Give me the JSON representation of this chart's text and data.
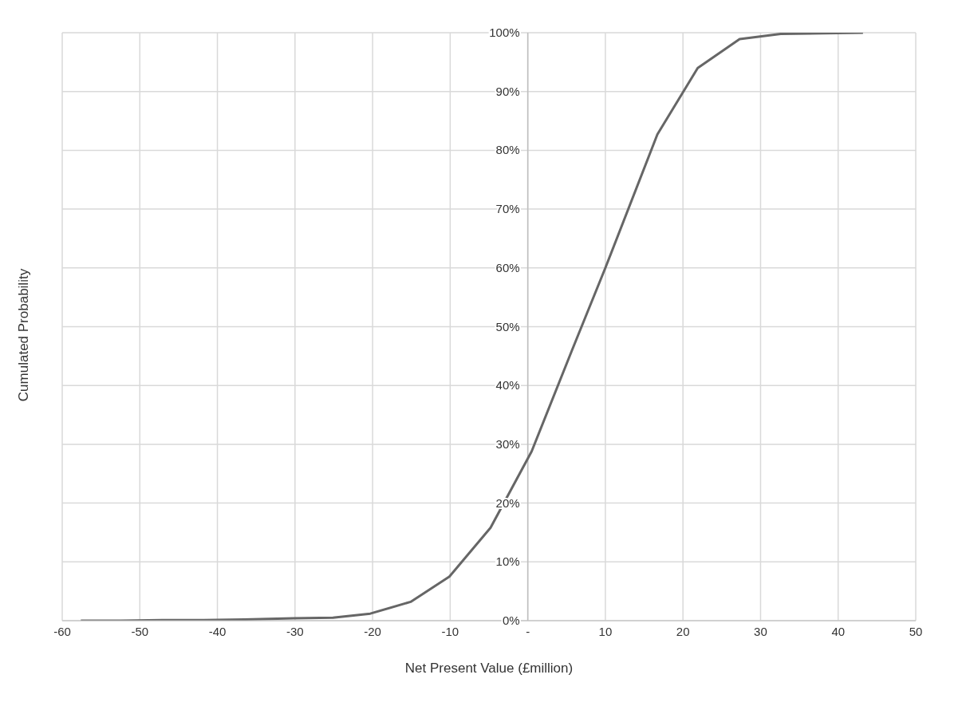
{
  "chart_data": {
    "type": "line",
    "xlabel": "Net Present Value (£million)",
    "ylabel": "Cumulated Probability",
    "x": [
      -57.6,
      -52.4,
      -47.1,
      -41.8,
      -36.5,
      -30.2,
      -25.1,
      -20.3,
      -15.1,
      -10.1,
      -4.8,
      0.5,
      5.7,
      10.0,
      16.7,
      21.9,
      27.3,
      32.6,
      43.2
    ],
    "series": [
      {
        "color": "#666666",
        "values": [
          0,
          0,
          0.1,
          0.1,
          0.2,
          0.4,
          0.5,
          1.2,
          3.2,
          7.5,
          15.8,
          28.8,
          46,
          60,
          82.7,
          94,
          98.9,
          99.8,
          100
        ]
      }
    ],
    "xlim": [
      -60,
      50
    ],
    "xticks": [
      -60,
      -50,
      -40,
      -30,
      -20,
      -10,
      {
        "value": 0,
        "label": "-"
      },
      10,
      20,
      30,
      40,
      50
    ],
    "ylim": [
      0,
      100
    ],
    "yticks": [
      {
        "value": 0,
        "label": "0%"
      },
      {
        "value": 10,
        "label": "10%"
      },
      {
        "value": 20,
        "label": "20%"
      },
      {
        "value": 30,
        "label": "30%"
      },
      {
        "value": 40,
        "label": "40%"
      },
      {
        "value": 50,
        "label": "50%"
      },
      {
        "value": 60,
        "label": "60%"
      },
      {
        "value": 70,
        "label": "70%"
      },
      {
        "value": 80,
        "label": "80%"
      },
      {
        "value": 90,
        "label": "90%"
      },
      {
        "value": 100,
        "label": "100%"
      }
    ],
    "grid": true,
    "marker": "none",
    "line_style": "solid"
  }
}
